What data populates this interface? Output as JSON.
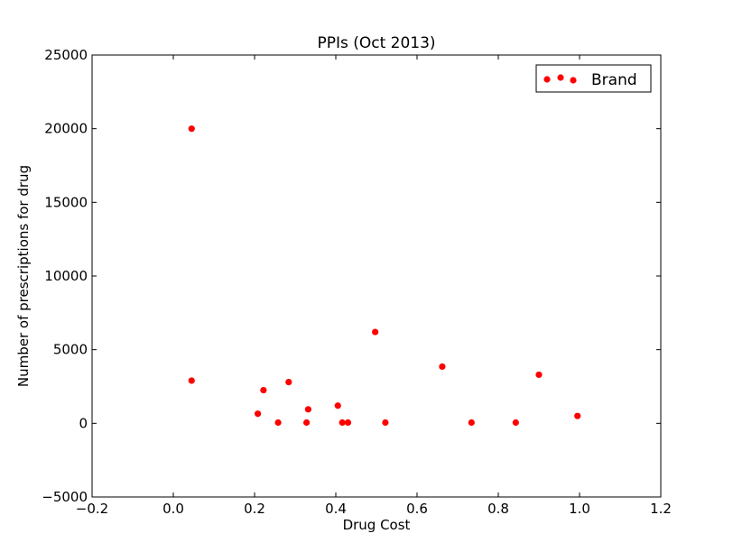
{
  "chart_data": {
    "type": "scatter",
    "title": "PPIs (Oct 2013)",
    "xlabel": "Drug Cost",
    "ylabel": "Number of prescriptions for drug",
    "xlim": [
      -0.2,
      1.2
    ],
    "ylim": [
      -5000,
      25000
    ],
    "xticks": [
      -0.2,
      0.0,
      0.2,
      0.4,
      0.6,
      0.8,
      1.0,
      1.2
    ],
    "xtick_labels": [
      "−0.2",
      "0.0",
      "0.2",
      "0.4",
      "0.6",
      "0.8",
      "1.0",
      "1.2"
    ],
    "yticks": [
      -5000,
      0,
      5000,
      10000,
      15000,
      20000,
      25000
    ],
    "ytick_labels": [
      "−5000",
      "0",
      "5000",
      "10000",
      "15000",
      "20000",
      "25000"
    ],
    "grid": false,
    "legend_position": "top-right",
    "series": [
      {
        "name": "Brand",
        "color": "#ff0000",
        "marker": "circle",
        "points": [
          {
            "x": 0.045,
            "y": 20000
          },
          {
            "x": 0.045,
            "y": 2900
          },
          {
            "x": 0.208,
            "y": 650
          },
          {
            "x": 0.222,
            "y": 2250
          },
          {
            "x": 0.258,
            "y": 50
          },
          {
            "x": 0.284,
            "y": 2800
          },
          {
            "x": 0.328,
            "y": 50
          },
          {
            "x": 0.332,
            "y": 950
          },
          {
            "x": 0.405,
            "y": 1200
          },
          {
            "x": 0.416,
            "y": 50
          },
          {
            "x": 0.43,
            "y": 50
          },
          {
            "x": 0.497,
            "y": 6200
          },
          {
            "x": 0.522,
            "y": 50
          },
          {
            "x": 0.662,
            "y": 3850
          },
          {
            "x": 0.734,
            "y": 50
          },
          {
            "x": 0.843,
            "y": 50
          },
          {
            "x": 0.9,
            "y": 3300
          },
          {
            "x": 0.995,
            "y": 500
          }
        ]
      }
    ]
  }
}
